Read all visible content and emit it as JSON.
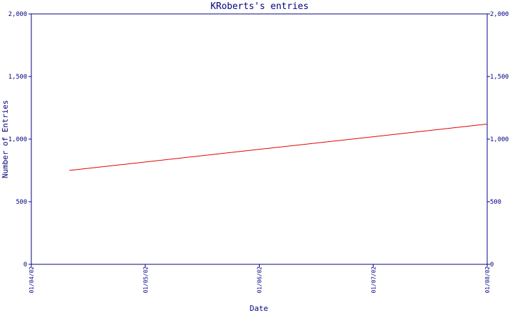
{
  "chart_data": {
    "type": "line",
    "title": "KRoberts's entries",
    "xlabel": "Date",
    "ylabel": "Number of Entries",
    "x_ticks": [
      "01/04/02",
      "01/05/02",
      "01/06/02",
      "01/07/02",
      "01/08/02"
    ],
    "y_ticks": [
      "0",
      "500",
      "1,000",
      "1,500",
      "2,000"
    ],
    "y_right_ticks": [
      "0",
      "500",
      "1,000",
      "1,500",
      "2,000"
    ],
    "ylim": [
      0,
      2000
    ],
    "xlim": [
      "2002-01-04",
      "2002-01-08"
    ],
    "grid": false,
    "legend": "none",
    "series": [
      {
        "x": [
          "2002-01-04T08:00",
          "2002-01-08"
        ],
        "values": [
          750,
          1120
        ],
        "color": "#e00000"
      }
    ]
  },
  "colors": {
    "axis": "#00007f",
    "series": "#e00000",
    "background": "#ffffff"
  }
}
